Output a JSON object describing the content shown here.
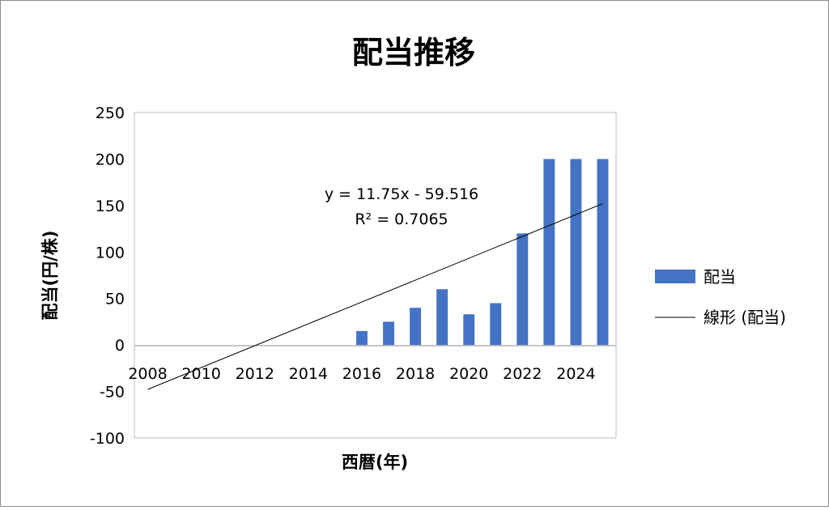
{
  "chart_data": {
    "type": "bar",
    "title": "配当推移",
    "xlabel": "西暦(年)",
    "ylabel": "配当(円/株)",
    "ylim": [
      -100,
      250
    ],
    "xlim": [
      2007.5,
      2025.5
    ],
    "yticks": [
      "250",
      "200",
      "150",
      "100",
      "50",
      "0",
      "-50",
      "-100"
    ],
    "xticks": [
      "2008",
      "2010",
      "2012",
      "2014",
      "2016",
      "2018",
      "2020",
      "2022",
      "2024"
    ],
    "x": [
      2008,
      2009,
      2010,
      2011,
      2012,
      2013,
      2014,
      2015,
      2016,
      2017,
      2018,
      2019,
      2020,
      2021,
      2022,
      2023,
      2024,
      2025
    ],
    "series": [
      {
        "name": "配当",
        "color": "#4472C4",
        "values": [
          0,
          0,
          0,
          0,
          0,
          0,
          0,
          0,
          15,
          25,
          40,
          60,
          33,
          45,
          120,
          200,
          200,
          200
        ]
      }
    ],
    "trendline": {
      "name": "線形 (配当)",
      "type": "linear",
      "color": "#000000",
      "slope": 11.75,
      "intercept": -59.516,
      "equation": "y = 11.75x - 59.516",
      "r2": "R² = 0.7065"
    },
    "legend_position": "right",
    "grid": false
  }
}
